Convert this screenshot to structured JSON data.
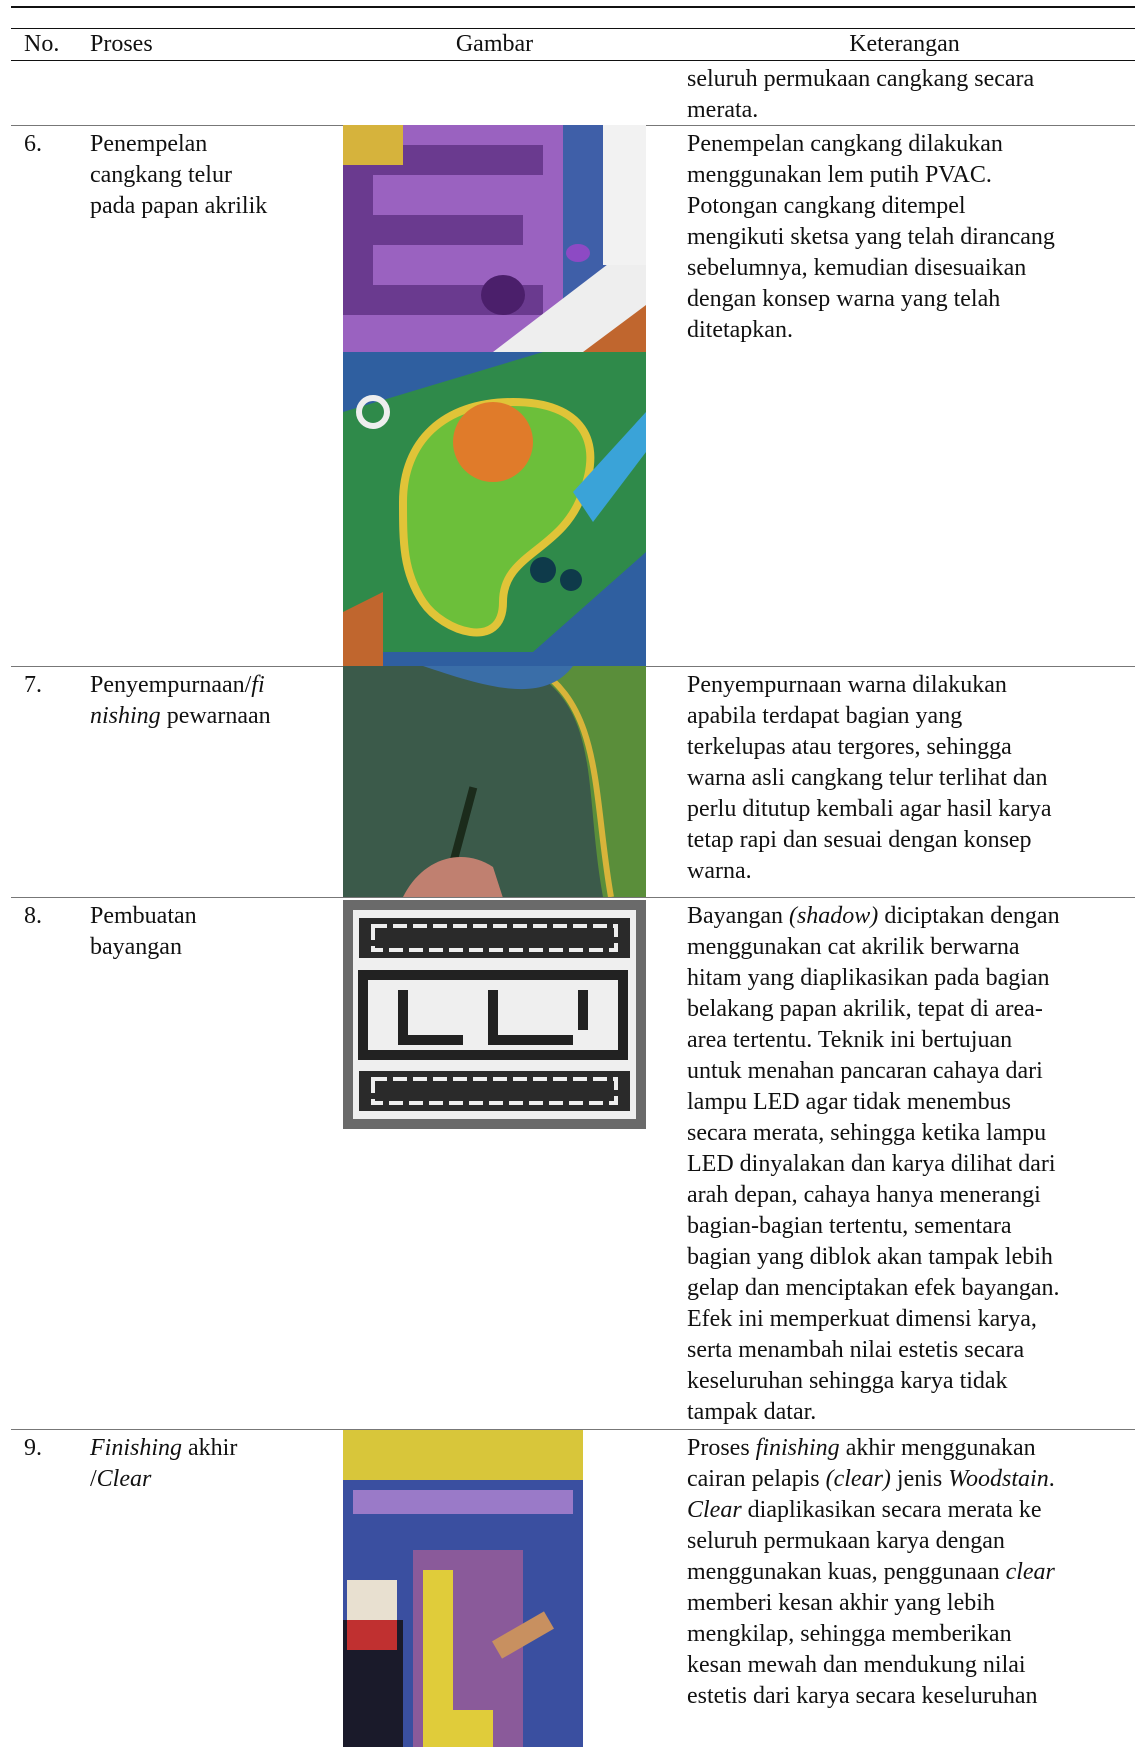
{
  "table": {
    "header": [
      "No.",
      "Proses",
      "Gambar",
      "Keterangan"
    ],
    "rows": [
      {
        "description": [
          [
            "seluruh permukaan cangkang secara"
          ],
          [
            "merata."
          ]
        ]
      },
      {
        "number": "6.",
        "process": [
          [
            "Penempelan"
          ],
          [
            "cangkang telur"
          ],
          [
            "pada papan akrilik"
          ]
        ],
        "description": [
          [
            "Penempelan cangkang dilakukan"
          ],
          [
            "menggunakan lem putih PVAC."
          ],
          [
            "Potongan cangkang ditempel"
          ],
          [
            "mengikuti sketsa yang telah dirancang"
          ],
          [
            "sebelumnya, kemudian disesuaikan"
          ],
          [
            "dengan konsep warna yang telah"
          ],
          [
            "ditetapkan."
          ]
        ]
      },
      {
        "number": "7.",
        "process": [
          [
            "Penyempurnaan/",
            {
              "italic": "fi"
            }
          ],
          [
            {
              "italic": "nishing"
            },
            " pewarnaan"
          ]
        ],
        "description": [
          [
            "Penyempurnaan warna dilakukan"
          ],
          [
            "apabila terdapat bagian yang"
          ],
          [
            "terkelupas atau tergores, sehingga"
          ],
          [
            "warna asli cangkang telur terlihat dan"
          ],
          [
            "perlu ditutup kembali agar hasil karya"
          ],
          [
            "tetap rapi dan sesuai dengan konsep"
          ],
          [
            "warna."
          ]
        ]
      },
      {
        "number": "8.",
        "process": [
          [
            "Pembuatan"
          ],
          [
            "bayangan"
          ]
        ],
        "description": [
          [
            "Bayangan ",
            {
              "italic": "(shadow)"
            },
            " diciptakan dengan"
          ],
          [
            "menggunakan cat akrilik berwarna"
          ],
          [
            "hitam yang diaplikasikan pada bagian"
          ],
          [
            "belakang papan akrilik, tepat di area-"
          ],
          [
            "area tertentu. Teknik ini bertujuan"
          ],
          [
            "untuk menahan pancaran cahaya dari"
          ],
          [
            "lampu LED agar tidak menembus"
          ],
          [
            "secara merata, sehingga ketika lampu"
          ],
          [
            "LED dinyalakan dan karya dilihat dari"
          ],
          [
            "arah depan, cahaya hanya menerangi"
          ],
          [
            "bagian-bagian tertentu, sementara"
          ],
          [
            "bagian yang diblok akan tampak lebih"
          ],
          [
            "gelap dan menciptakan efek bayangan."
          ],
          [
            "Efek ini memperkuat dimensi karya,"
          ],
          [
            "serta menambah nilai estetis secara"
          ],
          [
            "keseluruhan sehingga karya tidak"
          ],
          [
            "tampak datar."
          ]
        ]
      },
      {
        "number": "9.",
        "process": [
          [
            {
              "italic": "Finishing"
            },
            " akhir"
          ],
          [
            "/",
            {
              "italic": "Clear"
            }
          ]
        ],
        "description": [
          [
            "Proses ",
            {
              "italic": "finishing"
            },
            " akhir menggunakan"
          ],
          [
            "cairan pelapis ",
            {
              "italic": "(clear)"
            },
            " jenis ",
            {
              "italic": "Woodstain"
            },
            "."
          ],
          [
            {
              "italic": "Clear"
            },
            " diaplikasikan secara merata ke"
          ],
          [
            "seluruh permukaan karya dengan"
          ],
          [
            "menggunakan kuas, penggunaan ",
            {
              "italic": "clear"
            }
          ],
          [
            "memberi kesan akhir yang lebih"
          ],
          [
            "mengkilap, sehingga memberikan"
          ],
          [
            "kesan mewah dan mendukung nilai"
          ],
          [
            "estetis dari karya secara keseluruhan"
          ]
        ]
      }
    ]
  }
}
